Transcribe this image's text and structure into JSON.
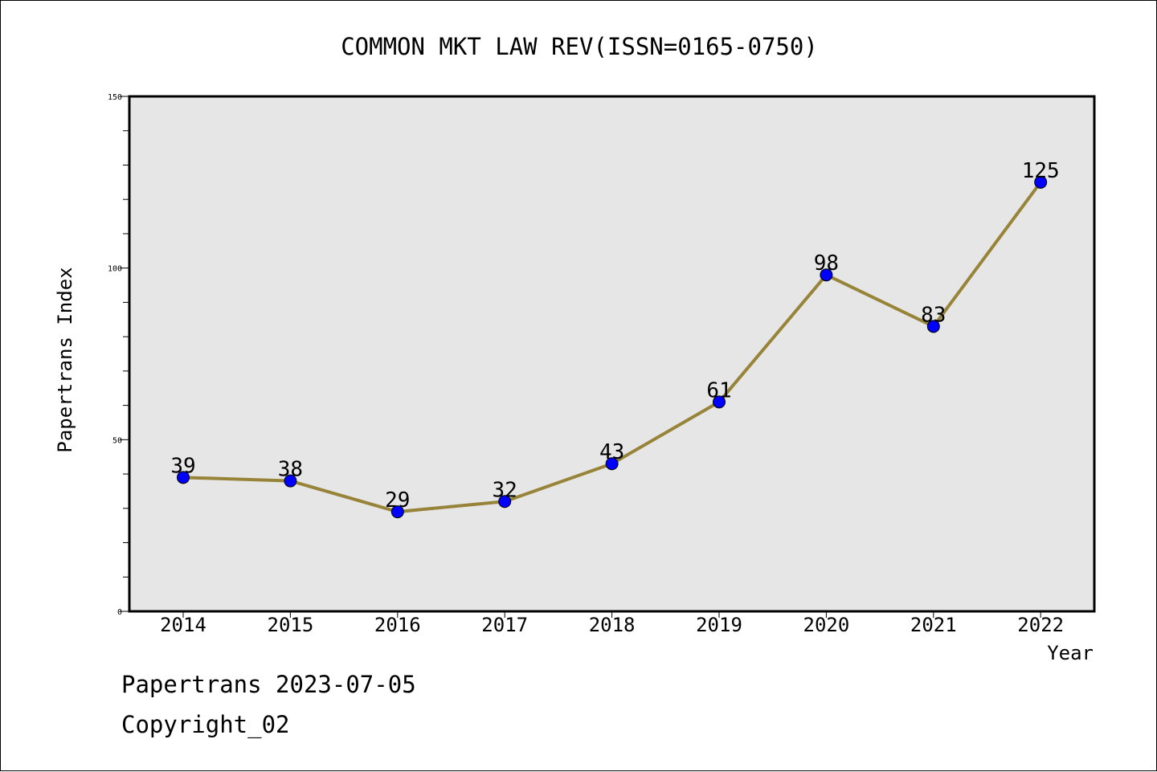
{
  "chart_data": {
    "type": "line",
    "title": "COMMON MKT LAW REV(ISSN=0165-0750)",
    "xlabel": "Year",
    "ylabel": "Papertrans Index",
    "categories": [
      "2014",
      "2015",
      "2016",
      "2017",
      "2018",
      "2019",
      "2020",
      "2021",
      "2022"
    ],
    "series": [
      {
        "name": "Papertrans Index",
        "values": [
          39,
          38,
          29,
          32,
          43,
          61,
          98,
          83,
          125
        ]
      }
    ],
    "data_labels": [
      "39",
      "38",
      "29",
      "32",
      "43",
      "61",
      "98",
      "83",
      "125"
    ],
    "ylim": [
      0,
      150
    ],
    "y_major_ticks": [
      0,
      50,
      100,
      150
    ],
    "y_major_tick_labels": [
      "0",
      "50",
      "100",
      "150"
    ],
    "y_minor_step": 10,
    "grid": false,
    "colors": {
      "line": "#978439",
      "marker": "#0000ff",
      "plot_background": "#e6e6e6"
    }
  },
  "footer": {
    "source": "Papertrans 2023-07-05",
    "copyright": "Copyright_02"
  }
}
